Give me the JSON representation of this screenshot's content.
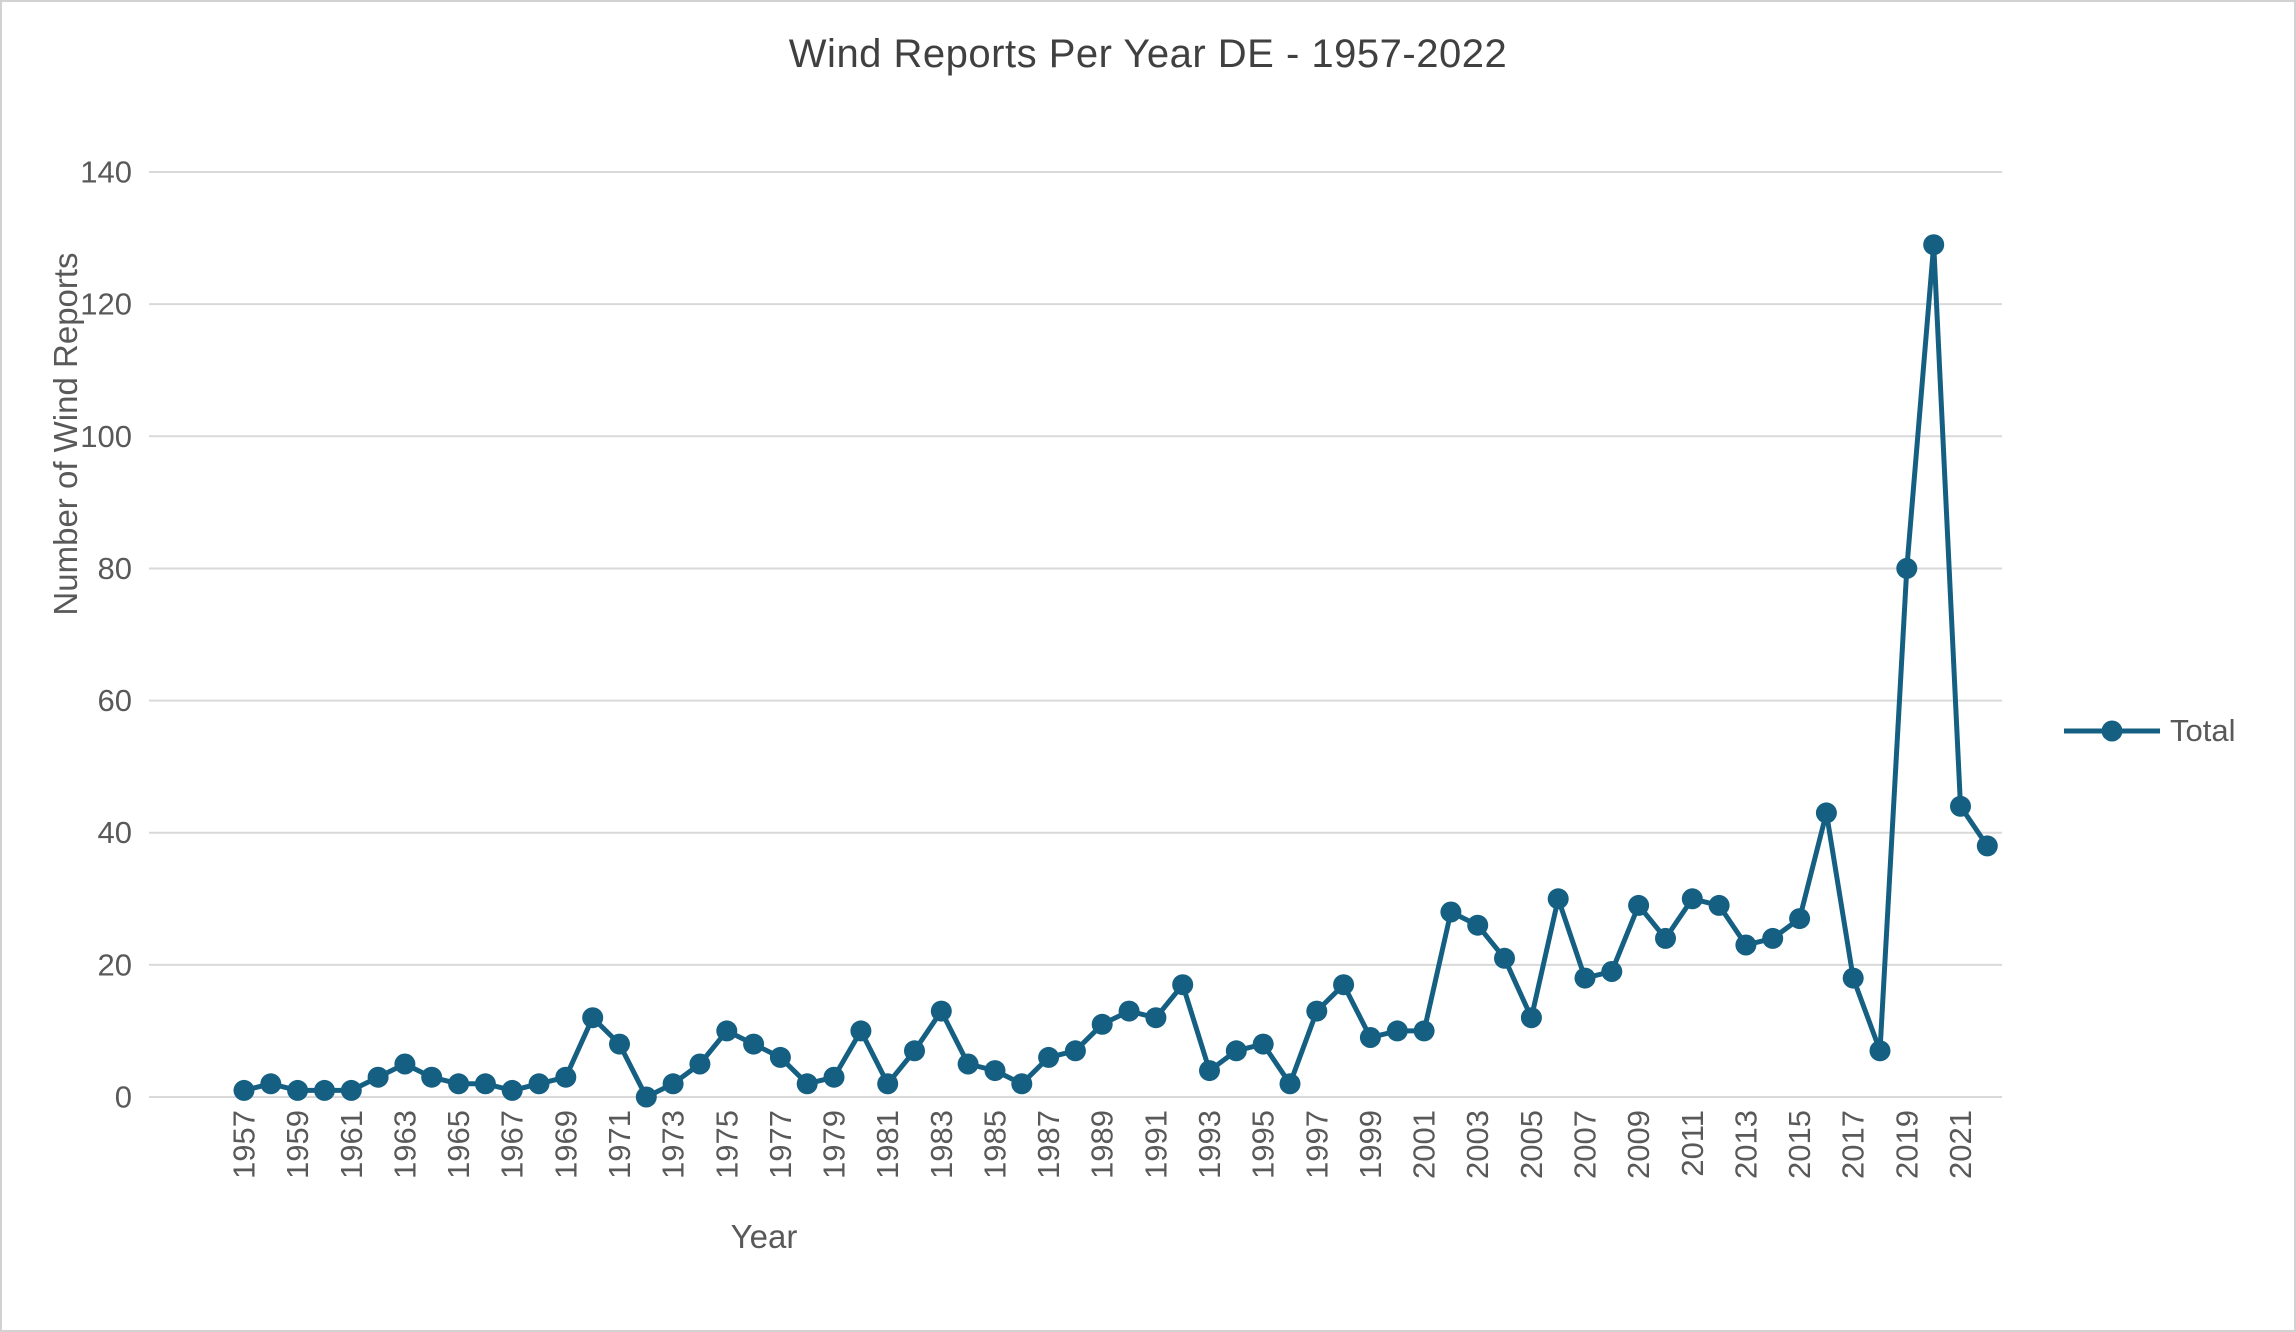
{
  "chart": {
    "title": "Wind Reports Per Year DE - 1957-2022",
    "x_axis_title": "Year",
    "y_axis_title": "Number of Wind Reports",
    "legend_label": "Total"
  },
  "chart_data": {
    "type": "line",
    "title": "Wind Reports Per Year DE - 1957-2022",
    "xlabel": "Year",
    "ylabel": "Number of Wind Reports",
    "grid": true,
    "legend_position": "right",
    "ylim": [
      0,
      140
    ],
    "yticks": [
      0,
      20,
      40,
      60,
      80,
      100,
      120,
      140
    ],
    "xtick_labels": [
      "1957",
      "1959",
      "1961",
      "1963",
      "1965",
      "1967",
      "1969",
      "1971",
      "1973",
      "1975",
      "1977",
      "1979",
      "1981",
      "1983",
      "1985",
      "1987",
      "1989",
      "1991",
      "1993",
      "1995",
      "1997",
      "1999",
      "2001",
      "2003",
      "2005",
      "2007",
      "2009",
      "2011",
      "2013",
      "2015",
      "2017",
      "2019",
      "2021"
    ],
    "x": [
      1957,
      1958,
      1959,
      1960,
      1961,
      1962,
      1963,
      1964,
      1965,
      1966,
      1967,
      1968,
      1969,
      1970,
      1971,
      1972,
      1973,
      1974,
      1975,
      1976,
      1977,
      1978,
      1979,
      1980,
      1981,
      1982,
      1983,
      1984,
      1985,
      1986,
      1987,
      1988,
      1989,
      1990,
      1991,
      1992,
      1993,
      1994,
      1995,
      1996,
      1997,
      1998,
      1999,
      2000,
      2001,
      2002,
      2003,
      2004,
      2005,
      2006,
      2007,
      2008,
      2009,
      2010,
      2011,
      2012,
      2013,
      2014,
      2015,
      2016,
      2017,
      2018,
      2019,
      2020,
      2021,
      2022
    ],
    "series": [
      {
        "name": "Total",
        "values": [
          1,
          2,
          1,
          1,
          1,
          3,
          5,
          3,
          2,
          2,
          1,
          2,
          3,
          12,
          8,
          0,
          2,
          5,
          10,
          8,
          6,
          2,
          3,
          10,
          2,
          7,
          13,
          5,
          4,
          2,
          6,
          7,
          11,
          13,
          12,
          17,
          4,
          7,
          8,
          2,
          13,
          17,
          9,
          10,
          10,
          28,
          26,
          21,
          12,
          30,
          18,
          19,
          29,
          24,
          30,
          29,
          23,
          24,
          27,
          43,
          18,
          7,
          80,
          129,
          44,
          38
        ]
      }
    ],
    "colors": {
      "accent": "#156082",
      "grid": "#d9d9d9",
      "axis_text": "#595959",
      "title_text": "#404040"
    }
  }
}
